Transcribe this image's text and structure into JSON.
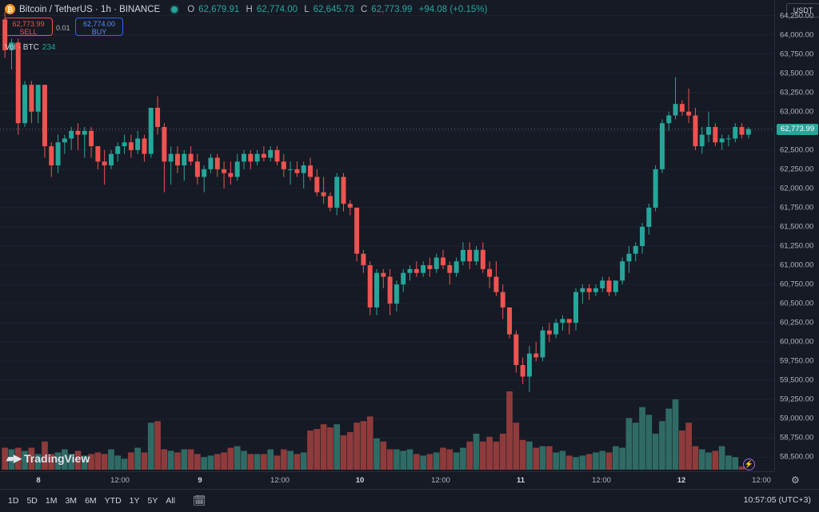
{
  "header": {
    "title": "Bitcoin / TetherUS · 1h · BINANCE",
    "open_label": "O",
    "open": "62,679.91",
    "high_label": "H",
    "high": "62,774.00",
    "low_label": "L",
    "low": "62,645.73",
    "close_label": "C",
    "close": "62,773.99",
    "change": "+94.08 (+0.15%)"
  },
  "trade": {
    "sell_price": "62,773.99",
    "sell_label": "SELL",
    "spread": "0.01",
    "buy_price": "62,774.00",
    "buy_label": "BUY"
  },
  "volume_legend": {
    "label": "Vol · BTC",
    "value": "234"
  },
  "brand": "TradingView",
  "currency_button": "USDT",
  "last_price_tag": "62,773.99",
  "y_ticks": [
    "64,250.00",
    "64,000.00",
    "63,750.00",
    "63,500.00",
    "63,250.00",
    "63,000.00",
    "62,750.00",
    "62,500.00",
    "62,250.00",
    "62,000.00",
    "61,750.00",
    "61,500.00",
    "61,250.00",
    "61,000.00",
    "60,750.00",
    "60,500.00",
    "60,250.00",
    "60,000.00",
    "59,750.00",
    "59,500.00",
    "59,250.00",
    "59,000.00",
    "58,750.00",
    "58,500.00"
  ],
  "x_ticks": [
    {
      "label": "8",
      "day": true
    },
    {
      "label": "12:00",
      "day": false
    },
    {
      "label": "9",
      "day": true
    },
    {
      "label": "12:00",
      "day": false
    },
    {
      "label": "10",
      "day": true
    },
    {
      "label": "12:00",
      "day": false
    },
    {
      "label": "11",
      "day": true
    },
    {
      "label": "12:00",
      "day": false
    },
    {
      "label": "12",
      "day": true
    },
    {
      "label": "12:00",
      "day": false
    }
  ],
  "ranges": [
    "1D",
    "5D",
    "1M",
    "3M",
    "6M",
    "YTD",
    "1Y",
    "5Y",
    "All"
  ],
  "clock": "10:57:05 (UTC+3)",
  "colors": {
    "up": "#26a69a",
    "down": "#ef5350",
    "up_vol": "#2f6b64",
    "down_vol": "#8f3b3b",
    "background": "#161a25"
  },
  "chart_data": {
    "type": "candlestick",
    "interval": "1h",
    "ylim": [
      58400,
      64350
    ],
    "candles": [
      [
        64200,
        64300,
        63700,
        63800
      ],
      [
        63800,
        63950,
        63550,
        63900
      ],
      [
        63900,
        63950,
        62700,
        62850
      ],
      [
        62850,
        63400,
        62800,
        63350
      ],
      [
        63350,
        63400,
        62850,
        63000
      ],
      [
        63000,
        63350,
        62850,
        63350
      ],
      [
        63350,
        63350,
        62400,
        62550
      ],
      [
        62550,
        62600,
        62150,
        62300
      ],
      [
        62300,
        62700,
        62200,
        62600
      ],
      [
        62600,
        62700,
        62450,
        62650
      ],
      [
        62650,
        62800,
        62500,
        62750
      ],
      [
        62750,
        62850,
        62500,
        62700
      ],
      [
        62700,
        62800,
        62400,
        62750
      ],
      [
        62750,
        62800,
        62400,
        62550
      ],
      [
        62550,
        62550,
        62250,
        62350
      ],
      [
        62350,
        62500,
        62050,
        62300
      ],
      [
        62300,
        62500,
        62250,
        62450
      ],
      [
        62450,
        62600,
        62350,
        62550
      ],
      [
        62550,
        62700,
        62450,
        62600
      ],
      [
        62600,
        62700,
        62400,
        62500
      ],
      [
        62500,
        62750,
        62450,
        62650
      ],
      [
        62650,
        62700,
        62350,
        62450
      ],
      [
        62450,
        63050,
        62400,
        63050
      ],
      [
        63050,
        63200,
        62700,
        62800
      ],
      [
        62800,
        62850,
        61950,
        62350
      ],
      [
        62350,
        62550,
        62050,
        62450
      ],
      [
        62450,
        62550,
        62200,
        62300
      ],
      [
        62300,
        62500,
        62100,
        62450
      ],
      [
        62450,
        62550,
        62300,
        62350
      ],
      [
        62350,
        62450,
        62050,
        62150
      ],
      [
        62150,
        62300,
        61950,
        62250
      ],
      [
        62250,
        62450,
        62200,
        62400
      ],
      [
        62400,
        62450,
        62150,
        62250
      ],
      [
        62250,
        62350,
        62000,
        62200
      ],
      [
        62200,
        62350,
        62050,
        62150
      ],
      [
        62150,
        62450,
        62100,
        62350
      ],
      [
        62350,
        62500,
        62250,
        62450
      ],
      [
        62450,
        62500,
        62250,
        62350
      ],
      [
        62350,
        62500,
        62300,
        62450
      ],
      [
        62450,
        62550,
        62350,
        62400
      ],
      [
        62400,
        62550,
        62350,
        62500
      ],
      [
        62500,
        62550,
        62300,
        62350
      ],
      [
        62350,
        62450,
        62150,
        62250
      ],
      [
        62250,
        62350,
        62050,
        62250
      ],
      [
        62250,
        62350,
        62150,
        62200
      ],
      [
        62200,
        62350,
        62000,
        62300
      ],
      [
        62300,
        62400,
        62100,
        62150
      ],
      [
        62150,
        62250,
        61900,
        61950
      ],
      [
        61950,
        62150,
        61800,
        61900
      ],
      [
        61900,
        61950,
        61700,
        61750
      ],
      [
        61750,
        62200,
        61650,
        62150
      ],
      [
        62150,
        62200,
        61700,
        61800
      ],
      [
        61800,
        61850,
        61650,
        61750
      ],
      [
        61750,
        61750,
        61050,
        61150
      ],
      [
        61150,
        61200,
        60900,
        61000
      ],
      [
        61000,
        61050,
        60350,
        60450
      ],
      [
        60450,
        60950,
        60350,
        60900
      ],
      [
        60900,
        60950,
        60700,
        60850
      ],
      [
        60850,
        60950,
        60350,
        60500
      ],
      [
        60500,
        60800,
        60400,
        60750
      ],
      [
        60750,
        60950,
        60650,
        60900
      ],
      [
        60900,
        61000,
        60800,
        60950
      ],
      [
        60950,
        61050,
        60850,
        60900
      ],
      [
        60900,
        61050,
        60850,
        61000
      ],
      [
        61000,
        61100,
        60850,
        60950
      ],
      [
        60950,
        61150,
        60900,
        61100
      ],
      [
        61100,
        61200,
        60950,
        61000
      ],
      [
        61000,
        61050,
        60750,
        60900
      ],
      [
        60900,
        61100,
        60850,
        61050
      ],
      [
        61050,
        61300,
        61000,
        61200
      ],
      [
        61200,
        61300,
        60950,
        61050
      ],
      [
        61050,
        61250,
        61000,
        61200
      ],
      [
        61200,
        61300,
        60900,
        60950
      ],
      [
        60950,
        61050,
        60700,
        60850
      ],
      [
        60850,
        61050,
        60600,
        60650
      ],
      [
        60650,
        60750,
        60300,
        60450
      ],
      [
        60450,
        60450,
        60050,
        60100
      ],
      [
        60100,
        60150,
        59600,
        59700
      ],
      [
        59700,
        59800,
        59450,
        59550
      ],
      [
        59550,
        59950,
        59350,
        59850
      ],
      [
        59850,
        60000,
        59750,
        59800
      ],
      [
        59800,
        60200,
        59750,
        60150
      ],
      [
        60150,
        60250,
        60000,
        60100
      ],
      [
        60100,
        60300,
        60050,
        60250
      ],
      [
        60250,
        60350,
        60150,
        60300
      ],
      [
        60300,
        60300,
        60100,
        60250
      ],
      [
        60250,
        60700,
        60150,
        60650
      ],
      [
        60650,
        60750,
        60500,
        60700
      ],
      [
        60700,
        60750,
        60550,
        60650
      ],
      [
        60650,
        60750,
        60600,
        60700
      ],
      [
        60700,
        60850,
        60650,
        60800
      ],
      [
        60800,
        60850,
        60600,
        60650
      ],
      [
        60650,
        60800,
        60600,
        60800
      ],
      [
        60800,
        61100,
        60750,
        61050
      ],
      [
        61050,
        61250,
        60900,
        61150
      ],
      [
        61150,
        61300,
        61050,
        61250
      ],
      [
        61250,
        61550,
        61150,
        61500
      ],
      [
        61500,
        61800,
        61400,
        61750
      ],
      [
        61750,
        62300,
        61700,
        62250
      ],
      [
        62250,
        62900,
        62200,
        62850
      ],
      [
        62850,
        63000,
        62750,
        62950
      ],
      [
        62950,
        63450,
        62900,
        63100
      ],
      [
        63100,
        63150,
        62950,
        63000
      ],
      [
        63000,
        63300,
        62850,
        62950
      ],
      [
        62950,
        63050,
        62500,
        62550
      ],
      [
        62550,
        62800,
        62450,
        62700
      ],
      [
        62700,
        63000,
        62600,
        62800
      ],
      [
        62800,
        62850,
        62550,
        62600
      ],
      [
        62600,
        62700,
        62500,
        62650
      ],
      [
        62650,
        62700,
        62550,
        62650
      ],
      [
        62650,
        62850,
        62600,
        62800
      ],
      [
        62800,
        62850,
        62650,
        62700
      ],
      [
        62700,
        62800,
        62650,
        62774
      ]
    ],
    "volume": [
      28,
      26,
      28,
      24,
      28,
      20,
      36,
      20,
      22,
      26,
      20,
      24,
      18,
      20,
      22,
      20,
      26,
      18,
      14,
      22,
      28,
      22,
      60,
      62,
      26,
      24,
      22,
      26,
      26,
      20,
      16,
      18,
      20,
      22,
      28,
      30,
      24,
      20,
      20,
      20,
      26,
      18,
      26,
      24,
      20,
      22,
      50,
      52,
      58,
      54,
      58,
      44,
      48,
      60,
      62,
      68,
      40,
      36,
      26,
      26,
      24,
      26,
      20,
      18,
      20,
      22,
      28,
      26,
      22,
      28,
      36,
      46,
      36,
      42,
      36,
      46,
      100,
      60,
      38,
      36,
      28,
      30,
      30,
      22,
      24,
      18,
      16,
      18,
      20,
      22,
      24,
      22,
      30,
      28,
      66,
      60,
      80,
      70,
      46,
      62,
      78,
      90,
      50,
      60,
      30,
      26,
      22,
      24,
      30,
      18,
      16,
      4
    ],
    "volume_max": 100
  }
}
